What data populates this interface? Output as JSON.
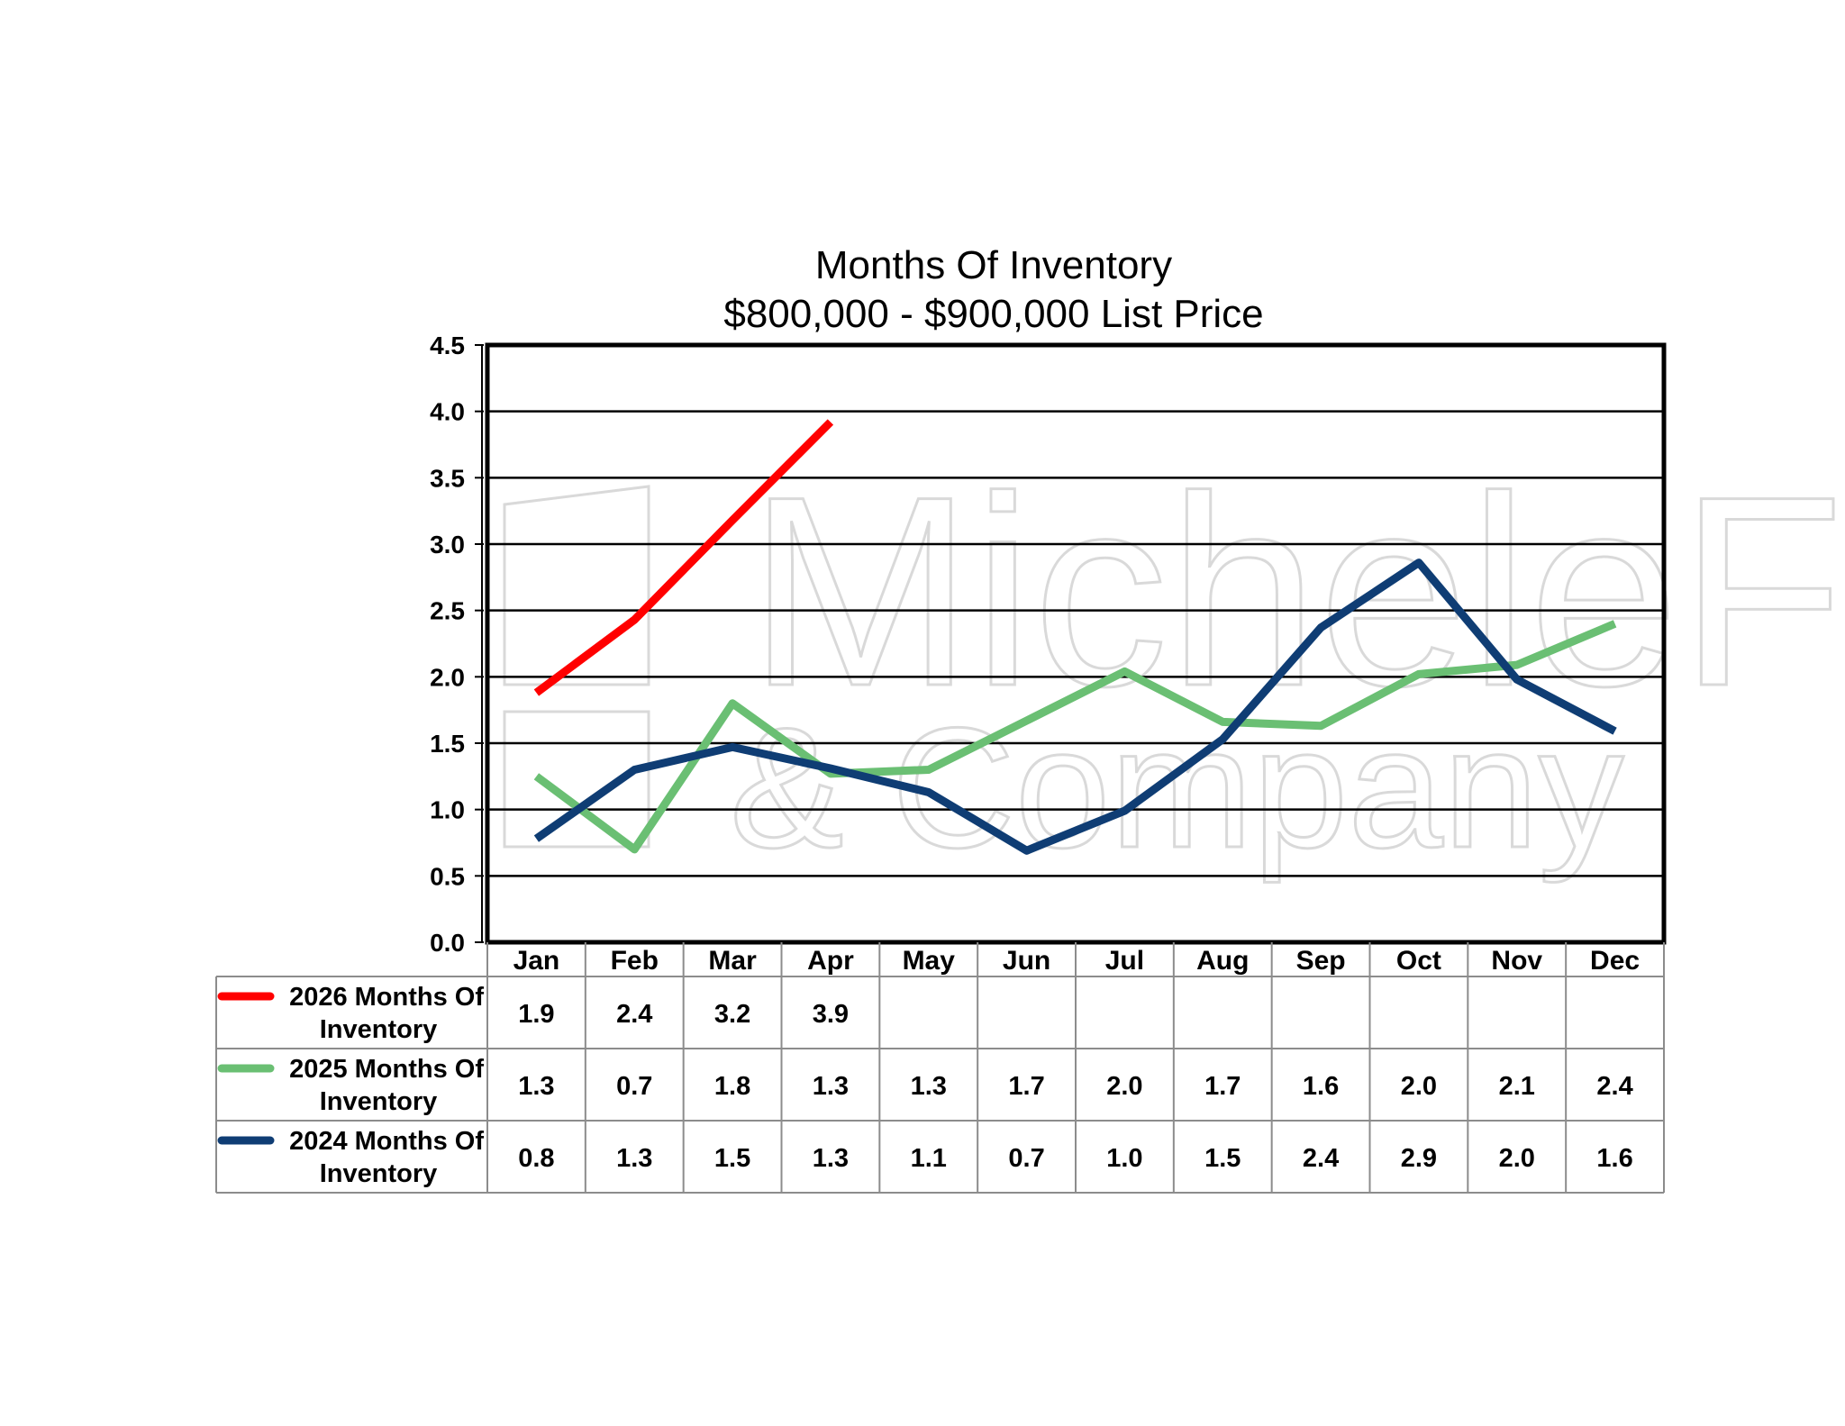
{
  "chart_data": {
    "type": "line",
    "title": "Months Of Inventory",
    "subtitle": "$800,000 - $900,000 List Price",
    "watermark": "MicheleFlory & Company",
    "categories": [
      "Jan",
      "Feb",
      "Mar",
      "Apr",
      "May",
      "Jun",
      "Jul",
      "Aug",
      "Sep",
      "Oct",
      "Nov",
      "Dec"
    ],
    "ylim": [
      0,
      4.5
    ],
    "yticks": [
      "0.0",
      "0.5",
      "1.0",
      "1.5",
      "2.0",
      "2.5",
      "3.0",
      "3.5",
      "4.0",
      "4.5"
    ],
    "grid": true,
    "legend": "data-table-below",
    "series": [
      {
        "name": "2026 Months Of Inventory",
        "name_lines": [
          "2026 Months Of",
          "Inventory"
        ],
        "color": "#ff0000",
        "values": [
          1.88,
          2.43,
          3.18,
          3.92,
          null,
          null,
          null,
          null,
          null,
          null,
          null,
          null
        ],
        "labels": [
          "1.9",
          "2.4",
          "3.2",
          "3.9",
          "",
          "",
          "",
          "",
          "",
          "",
          "",
          ""
        ]
      },
      {
        "name": "2025 Months Of Inventory",
        "name_lines": [
          "2025 Months Of",
          "Inventory"
        ],
        "color": "#6abf73",
        "values": [
          1.25,
          0.7,
          1.8,
          1.27,
          1.3,
          1.67,
          2.04,
          1.66,
          1.63,
          2.02,
          2.09,
          2.4
        ],
        "labels": [
          "1.3",
          "0.7",
          "1.8",
          "1.3",
          "1.3",
          "1.7",
          "2.0",
          "1.7",
          "1.6",
          "2.0",
          "2.1",
          "2.4"
        ]
      },
      {
        "name": "2024 Months Of Inventory",
        "name_lines": [
          "2024 Months Of",
          "Inventory"
        ],
        "color": "#0f3d74",
        "values": [
          0.78,
          1.3,
          1.47,
          1.31,
          1.13,
          0.69,
          0.99,
          1.53,
          2.37,
          2.86,
          1.98,
          1.59
        ],
        "labels": [
          "0.8",
          "1.3",
          "1.5",
          "1.3",
          "1.1",
          "0.7",
          "1.0",
          "1.5",
          "2.4",
          "2.9",
          "2.0",
          "1.6"
        ]
      }
    ]
  }
}
